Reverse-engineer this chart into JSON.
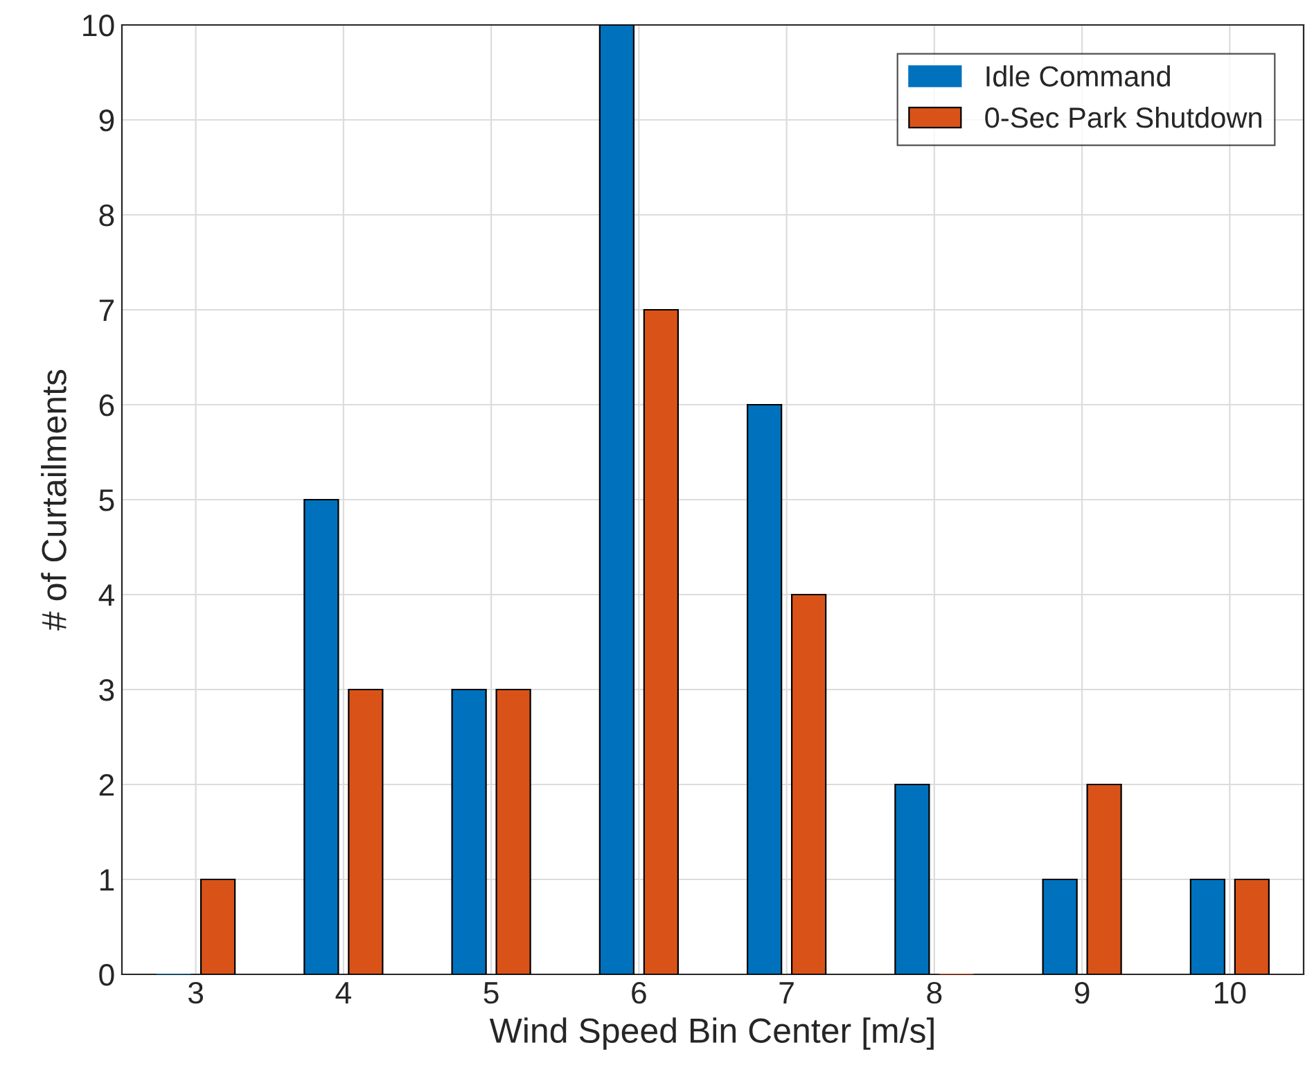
{
  "chart_data": {
    "type": "bar",
    "xlabel": "Wind Speed Bin Center [m/s]",
    "ylabel": "# of Curtailments",
    "categories": [
      "3",
      "4",
      "5",
      "6",
      "7",
      "8",
      "9",
      "10"
    ],
    "series": [
      {
        "name": "Idle Command",
        "color": "#0072bd",
        "values": [
          0,
          5,
          3,
          10,
          6,
          2,
          1,
          1
        ]
      },
      {
        "name": "0-Sec Park Shutdown",
        "color": "#d95319",
        "values": [
          1,
          3,
          3,
          7,
          4,
          0,
          2,
          1
        ]
      }
    ],
    "ylim": [
      0,
      10
    ],
    "yticks": [
      0,
      1,
      2,
      3,
      4,
      5,
      6,
      7,
      8,
      9,
      10
    ],
    "grid": true,
    "legend": "top right"
  }
}
